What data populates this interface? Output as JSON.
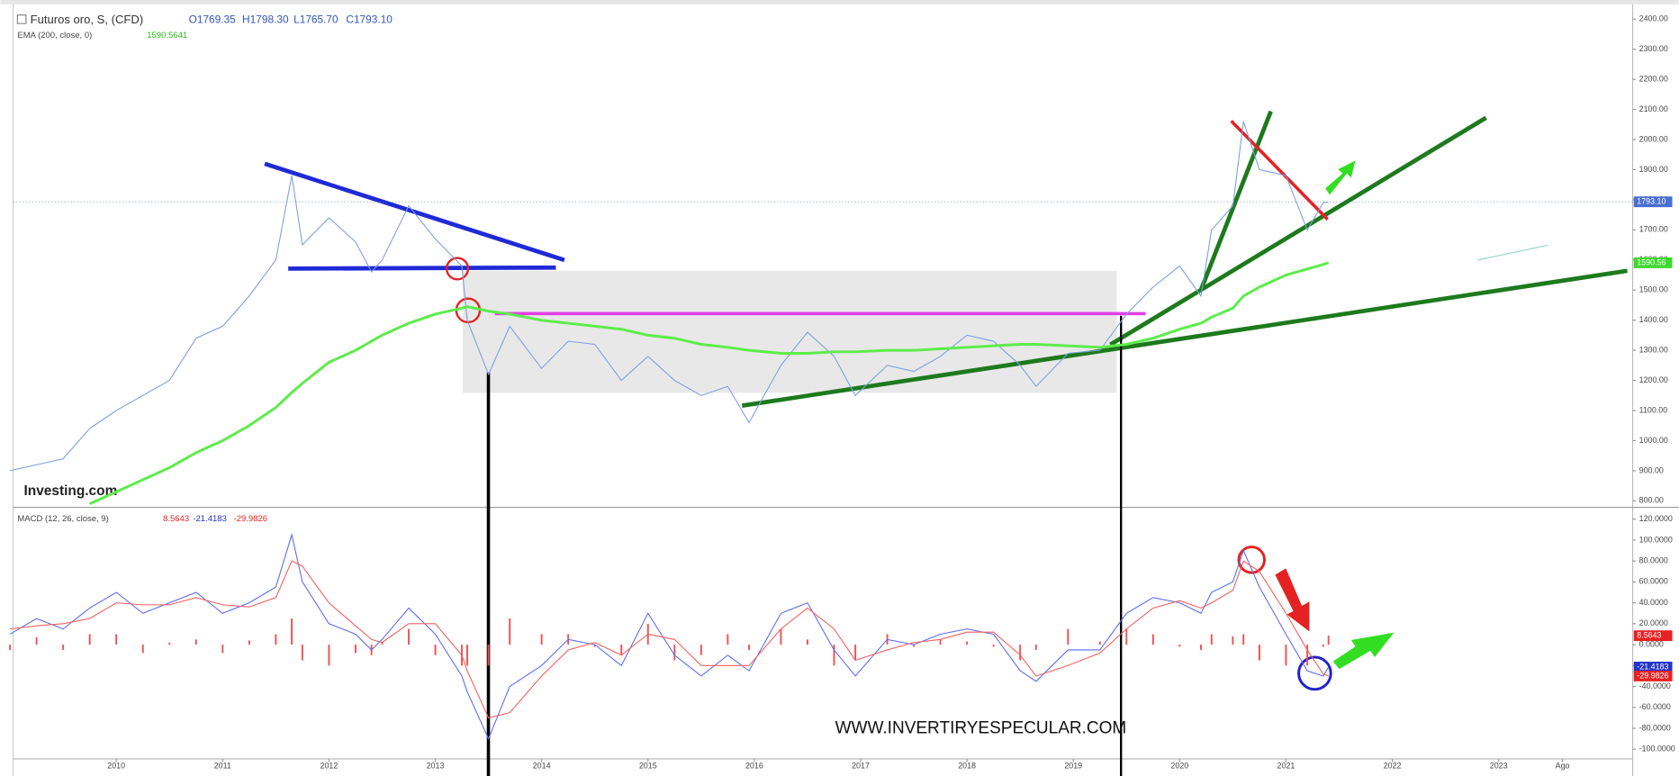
{
  "chart_data": [
    {
      "type": "line",
      "title": "Futuros oro, S, (CFD)",
      "ohlc": [
        "O1769.35",
        "H1798.30",
        "L1765.70",
        "C1793.10"
      ],
      "watermark": "Investing.com",
      "xlim": [
        2009.03,
        2024.26
      ],
      "ylim": [
        782,
        2435
      ],
      "yticks": [
        {
          "value": 800,
          "label": "800.00"
        },
        {
          "value": 900,
          "label": "900.00"
        },
        {
          "value": 1000,
          "label": "1000.00"
        },
        {
          "value": 1100,
          "label": "1100.00"
        },
        {
          "value": 1200,
          "label": "1200.00"
        },
        {
          "value": 1300,
          "label": "1300.00"
        },
        {
          "value": 1400,
          "label": "1400.00"
        },
        {
          "value": 1500,
          "label": "1500.00"
        },
        {
          "value": 1600,
          "label": "1600.00"
        },
        {
          "value": 1700,
          "label": "1700.00"
        },
        {
          "value": 1800,
          "label": "1800.00"
        },
        {
          "value": 1900,
          "label": "1900.00"
        },
        {
          "value": 2000,
          "label": "2000.00"
        },
        {
          "value": 2100,
          "label": "2100.00"
        },
        {
          "value": 2200,
          "label": "2200.00"
        },
        {
          "value": 2300,
          "label": "2300.00"
        },
        {
          "value": 2400,
          "label": "2400.00"
        }
      ],
      "grid": false,
      "x": [
        2009.0,
        2009.25,
        2009.5,
        2009.75,
        2010.0,
        2010.25,
        2010.5,
        2010.75,
        2011.0,
        2011.25,
        2011.5,
        2011.65,
        2011.75,
        2012.0,
        2012.25,
        2012.4,
        2012.5,
        2012.75,
        2013.0,
        2013.25,
        2013.3,
        2013.5,
        2013.7,
        2014.0,
        2014.25,
        2014.5,
        2014.75,
        2015.0,
        2015.25,
        2015.5,
        2015.75,
        2015.95,
        2016.25,
        2016.5,
        2016.75,
        2016.95,
        2017.25,
        2017.5,
        2017.75,
        2018.0,
        2018.25,
        2018.5,
        2018.65,
        2018.95,
        2019.25,
        2019.5,
        2019.75,
        2020.0,
        2020.2,
        2020.3,
        2020.5,
        2020.6,
        2020.75,
        2021.0,
        2021.2,
        2021.35,
        2021.4
      ],
      "series": [
        {
          "color": "#7b9fe0",
          "last_label": "1793.10",
          "values": [
            900,
            920,
            940,
            1040,
            1100,
            1150,
            1200,
            1340,
            1380,
            1480,
            1600,
            1880,
            1650,
            1740,
            1660,
            1560,
            1600,
            1780,
            1670,
            1580,
            1400,
            1220,
            1380,
            1240,
            1330,
            1320,
            1200,
            1280,
            1200,
            1150,
            1180,
            1060,
            1250,
            1360,
            1280,
            1150,
            1250,
            1230,
            1280,
            1350,
            1330,
            1250,
            1180,
            1290,
            1300,
            1420,
            1510,
            1580,
            1480,
            1700,
            1780,
            2060,
            1900,
            1880,
            1700,
            1790,
            1793.1
          ]
        },
        {
          "name": "EMA (200, close, 0)",
          "legend_value": "1590.5641",
          "color": "#5dec4a",
          "last_label": "1590.56",
          "values": [
            null,
            null,
            null,
            790,
            830,
            870,
            910,
            960,
            1000,
            1050,
            1110,
            1160,
            1190,
            1260,
            1300,
            1330,
            1350,
            1390,
            1420,
            1440,
            1445,
            1430,
            1420,
            1400,
            1390,
            1380,
            1370,
            1350,
            1340,
            1320,
            1310,
            1300,
            1290,
            1290,
            1295,
            1295,
            1300,
            1300,
            1305,
            1310,
            1315,
            1320,
            1320,
            1315,
            1310,
            1320,
            1340,
            1370,
            1390,
            1410,
            1440,
            1480,
            1510,
            1550,
            1570,
            1585,
            1590.56
          ]
        }
      ]
    },
    {
      "type": "macd",
      "title": "MACD (12, 26, close, 9)",
      "watermark": "WWW.INVERTIRYESPECULAR.COM",
      "xlim": [
        2009.03,
        2024.26
      ],
      "ylim": [
        -122.5,
        128.2
      ],
      "xticks": [
        2010,
        2011,
        2012,
        2013,
        2014,
        2015,
        2016,
        2017,
        2018,
        2019,
        2020,
        2021,
        2022,
        2023,
        {
          "value": 2023.6,
          "label": "Ago"
        }
      ],
      "yticks": [
        {
          "value": -100,
          "label": "-100.0000"
        },
        {
          "value": -80,
          "label": "-80.0000"
        },
        {
          "value": -60,
          "label": "-60.0000"
        },
        {
          "value": -40,
          "label": "-40.0000"
        },
        {
          "value": -20,
          "label": "-20.0000"
        },
        {
          "value": 0,
          "label": "0.0000"
        },
        {
          "value": 20,
          "label": "20.0000"
        },
        {
          "value": 40,
          "label": "40.0000"
        },
        {
          "value": 60,
          "label": "60.0000"
        },
        {
          "value": 80,
          "label": "80.0000"
        },
        {
          "value": 100,
          "label": "100.0000"
        },
        {
          "value": 120,
          "label": "120.0000"
        }
      ],
      "x": [
        2009.0,
        2009.25,
        2009.5,
        2009.75,
        2010.0,
        2010.25,
        2010.5,
        2010.75,
        2011.0,
        2011.25,
        2011.5,
        2011.65,
        2011.75,
        2012.0,
        2012.25,
        2012.4,
        2012.5,
        2012.75,
        2013.0,
        2013.25,
        2013.3,
        2013.5,
        2013.7,
        2014.0,
        2014.25,
        2014.5,
        2014.75,
        2015.0,
        2015.25,
        2015.5,
        2015.75,
        2015.95,
        2016.25,
        2016.5,
        2016.75,
        2016.95,
        2017.25,
        2017.5,
        2017.75,
        2018.0,
        2018.25,
        2018.5,
        2018.65,
        2018.95,
        2019.25,
        2019.5,
        2019.75,
        2020.0,
        2020.2,
        2020.3,
        2020.5,
        2020.6,
        2020.75,
        2021.0,
        2021.2,
        2021.35,
        2021.4
      ],
      "series": [
        {
          "kind": "histogram",
          "color": "#f05050",
          "values": [
            -5,
            7,
            -5,
            10,
            10,
            -8,
            2,
            5,
            -8,
            4,
            10,
            25,
            -15,
            -20,
            -8,
            -10,
            3,
            15,
            -10,
            -20,
            -20,
            -20,
            25,
            10,
            10,
            -2,
            -10,
            20,
            -15,
            -10,
            10,
            -5,
            15,
            5,
            -20,
            -15,
            10,
            -2,
            5,
            3,
            -2,
            -15,
            -5,
            15,
            3,
            15,
            10,
            -2,
            -5,
            10,
            8,
            10,
            -15,
            -20,
            -20,
            -2,
            8.5643
          ]
        },
        {
          "kind": "line",
          "color": "#5b6bef",
          "values": [
            10,
            25,
            15,
            35,
            50,
            30,
            40,
            50,
            30,
            40,
            55,
            105,
            60,
            20,
            10,
            -5,
            5,
            35,
            10,
            -30,
            -45,
            -90,
            -40,
            -20,
            5,
            0,
            -20,
            30,
            -10,
            -30,
            -10,
            -25,
            30,
            40,
            -5,
            -30,
            5,
            0,
            10,
            15,
            10,
            -25,
            -35,
            -5,
            -5,
            30,
            45,
            40,
            30,
            50,
            60,
            90,
            55,
            10,
            -25,
            -30,
            -21.4183
          ]
        },
        {
          "kind": "line",
          "color": "#f26060",
          "values": [
            15,
            18,
            20,
            25,
            40,
            38,
            38,
            45,
            38,
            36,
            45,
            80,
            75,
            40,
            18,
            5,
            2,
            20,
            20,
            -10,
            -25,
            -70,
            -65,
            -30,
            -5,
            2,
            -10,
            10,
            5,
            -20,
            -20,
            -20,
            15,
            35,
            15,
            -15,
            -5,
            2,
            5,
            12,
            12,
            -10,
            -30,
            -20,
            -8,
            15,
            35,
            42,
            35,
            40,
            52,
            80,
            70,
            30,
            -5,
            -28,
            -29.9826
          ]
        }
      ]
    }
  ]
}
